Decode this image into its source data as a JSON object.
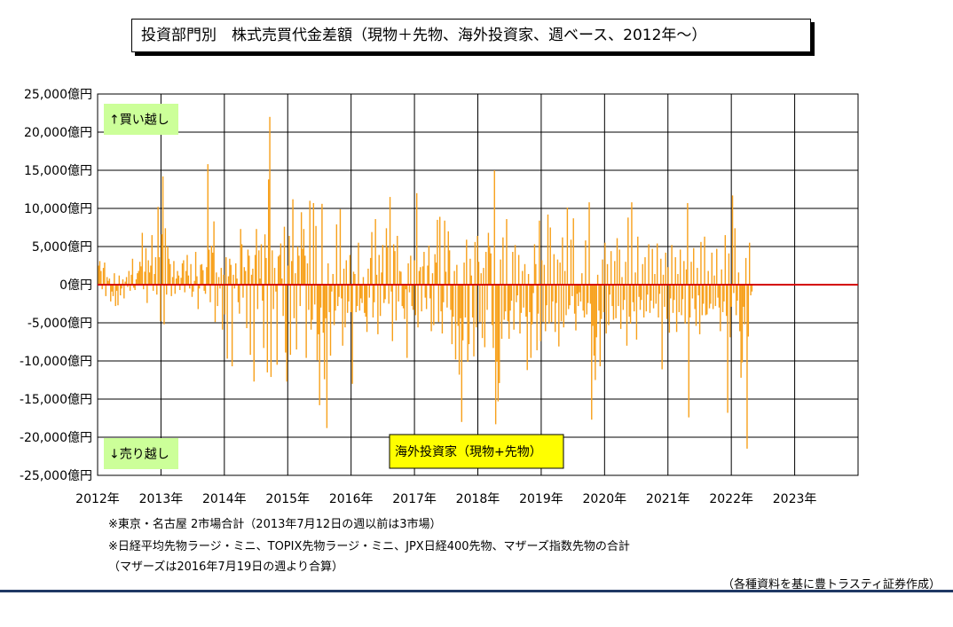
{
  "title": "投資部門別　株式売買代金差額（現物＋先物、海外投資家、週ベース、2012年～）",
  "notes": [
    "※東京・名古屋 2市場合計（2013年7月12日の週以前は3市場）",
    "※日経平均先物ラージ・ミニ、TOPIX先物ラージ・ミニ、JPX日経400先物、マザーズ指数先物の合計",
    "（マザーズは2016年7月19日の週より合算）"
  ],
  "source": "（各種資料を基に豊トラスティ証券作成）",
  "colors": {
    "bars": "#f7a01a",
    "zero_line": "#d40000",
    "grid": "#000000",
    "buy_sell_box": "#ccff99",
    "legend_box": "#ffff00"
  },
  "chart_data": {
    "type": "bar",
    "title": "投資部門別　株式売買代金差額（現物＋先物、海外投資家、週ベース、2012年～）",
    "unit": "億円",
    "ylim": [
      -25000,
      25000
    ],
    "y_ticks": [
      "25,000億円",
      "20,000億円",
      "15,000億円",
      "10,000億円",
      "5,000億円",
      "0億円",
      "-5,000億円",
      "-10,000億円",
      "-15,000億円",
      "-20,000億円",
      "-25,000億円"
    ],
    "x_tick_labels": [
      "2012年",
      "2013年",
      "2014年",
      "2015年",
      "2016年",
      "2017年",
      "2018年",
      "2019年",
      "2020年",
      "2021年",
      "2022年",
      "2023年"
    ],
    "x_range_years": [
      2012,
      2024
    ],
    "annotation_buy": "↑買い越し",
    "annotation_sell": "↓売り越し",
    "series": [
      {
        "name": "海外投資家（現物+先物）",
        "start": "2012-01-06",
        "interval_days": 7,
        "values": [
          2500,
          3100,
          1800,
          -600,
          2200,
          2900,
          -1500,
          1000,
          500,
          800,
          -2200,
          -900,
          -1500,
          1500,
          -2800,
          -800,
          -2700,
          1200,
          -1400,
          -500,
          700,
          -1800,
          400,
          1000,
          -300,
          1800,
          -800,
          1300,
          3400,
          -400,
          -700,
          700,
          1500,
          1800,
          3000,
          2400,
          6800,
          -600,
          1700,
          4800,
          -2400,
          3200,
          1600,
          2500,
          6500,
          -800,
          1400,
          3600,
          -1300,
          10200,
          3600,
          -4800,
          6600,
          14200,
          -5200,
          7400,
          -1300,
          5000,
          3400,
          2700,
          -1500,
          1000,
          3100,
          -1200,
          800,
          1800,
          1200,
          -700,
          900,
          2800,
          3200,
          -1000,
          1800,
          3900,
          1200,
          -500,
          2700,
          -1600,
          -900,
          500,
          4300,
          1100,
          -3200,
          -500,
          2600,
          2700,
          1900,
          -800,
          -1200,
          2300,
          15800,
          4600,
          -2300,
          5100,
          4200,
          8300,
          -4900,
          1600,
          -2800,
          1000,
          -500,
          2200,
          -5900,
          1300,
          -3900,
          3600,
          -9700,
          1100,
          3400,
          2600,
          -10700,
          1300,
          -500,
          2800,
          800,
          -2300,
          -3800,
          7300,
          5300,
          -1700,
          2300,
          1800,
          -5700,
          4600,
          3800,
          -9200,
          1300,
          2100,
          -12700,
          3900,
          7300,
          -3200,
          4500,
          800,
          5300,
          -2100,
          -8300,
          6600,
          3500,
          -11500,
          13800,
          22000,
          -12100,
          4500,
          -3200,
          2200,
          -900,
          -10500,
          3700,
          3900,
          5400,
          800,
          -4100,
          7600,
          -8900,
          -12700,
          2500,
          6400,
          -9200,
          3100,
          11200,
          -4400,
          1500,
          -8500,
          5000,
          3800,
          -2800,
          9500,
          4700,
          7300,
          3800,
          -9600,
          2800,
          -3300,
          11000,
          -5900,
          -4600,
          10700,
          -2600,
          7700,
          -9900,
          -6500,
          -15800,
          -3000,
          10600,
          -6300,
          -12400,
          -4400,
          -18800,
          2800,
          -3600,
          -9300,
          -900,
          1400,
          -5300,
          -3400,
          7900,
          -2800,
          -1600,
          9900,
          -1800,
          -8000,
          2100,
          -5600,
          3200,
          -3700,
          -2200,
          3900,
          -3600,
          -13000,
          1700,
          1400,
          -3600,
          -2800,
          5500,
          -3400,
          -1800,
          -2400,
          1000,
          -3700,
          -4200,
          -6200,
          2100,
          -1700,
          3500,
          6900,
          -4300,
          -2300,
          8600,
          1300,
          -6500,
          3900,
          -4100,
          1600,
          5200,
          -2400,
          -1900,
          7400,
          4900,
          -2500,
          11500,
          -900,
          -7400,
          5300,
          4400,
          -4700,
          6400,
          -2200,
          1800,
          1700,
          -2800,
          -3100,
          -4500,
          -600,
          -9600,
          2800,
          -1000,
          3800,
          -2800,
          -3300,
          3200,
          -4000,
          12000,
          -5600,
          1800,
          2300,
          -3500,
          2400,
          4300,
          -1700,
          -3200,
          2500,
          5100,
          -1800,
          -6100,
          1500,
          -5300,
          4000,
          2900,
          8500,
          -4900,
          8900,
          -3500,
          -6400,
          -2300,
          8400,
          1700,
          -3000,
          7000,
          4500,
          -3300,
          -7800,
          -4200,
          1800,
          -9800,
          2600,
          -5400,
          -11800,
          -4400,
          -18000,
          -7300,
          2900,
          -4300,
          5900,
          -10100,
          -7800,
          3400,
          1200,
          -4300,
          -9400,
          5600,
          -5600,
          6400,
          3000,
          -4900,
          1500,
          -7000,
          2200,
          -8200,
          4300,
          -3300,
          6800,
          5000,
          4100,
          -5300,
          -8300,
          15000,
          -18300,
          -10100,
          -15300,
          -12900,
          3300,
          -7100,
          6200,
          -4600,
          -3500,
          8600,
          -4800,
          -7100,
          -3400,
          -2100,
          4300,
          -5900,
          5200,
          -2300,
          -1400,
          3900,
          -6400,
          -3700,
          1800,
          -3000,
          2700,
          -4200,
          -11200,
          1400,
          -3600,
          -9600,
          -5200,
          -1100,
          5300,
          2700,
          -8600,
          -3800,
          8400,
          -7400,
          3200,
          -4900,
          2600,
          -6100,
          -2700,
          9200,
          -5100,
          7500,
          -4900,
          -2200,
          4000,
          -6200,
          -2400,
          3300,
          -8100,
          2900,
          -4800,
          6200,
          -5600,
          1800,
          -4000,
          10100,
          -3200,
          -2700,
          5900,
          -1500,
          8700,
          -3800,
          -6000,
          -1200,
          -2800,
          -1000,
          -2200,
          1500,
          -3400,
          -4300,
          5800,
          -3900,
          -2400,
          10800,
          -2500,
          -17700,
          -5400,
          -9300,
          -12500,
          -6900,
          1300,
          -3400,
          -10700,
          -4500,
          3300,
          -3600,
          5500,
          -6400,
          2700,
          -5300,
          -1300,
          4400,
          -2800,
          -4600,
          3100,
          -4400,
          6100,
          -2800,
          4600,
          -5800,
          1000,
          -3300,
          -2000,
          3000,
          -8000,
          8800,
          -4200,
          -5100,
          10800,
          -2300,
          -3500,
          1600,
          -7200,
          6300,
          -1600,
          -3300,
          -2000,
          2700,
          -4300,
          3600,
          -3500,
          -1300,
          5300,
          -3700,
          -2100,
          4700,
          -3100,
          1400,
          -2500,
          5400,
          -4300,
          -1200,
          3400,
          -11100,
          1300,
          -2900,
          4200,
          -4500,
          2300,
          -6300,
          -1800,
          5200,
          -3700,
          -2000,
          3600,
          -6200,
          1400,
          -3600,
          4600,
          -4000,
          -1900,
          3100,
          -5100,
          2000,
          10700,
          -17400,
          -4300,
          3000,
          -1800,
          4800,
          -3200,
          -5400,
          2200,
          -1400,
          -6500,
          5600,
          -4000,
          -2500,
          6300,
          -4000,
          -3900,
          1800,
          -3100,
          -2500,
          4200,
          -3200,
          1200,
          -2800,
          4700,
          -1700,
          -3000,
          -6100,
          2000,
          -3600,
          -2200,
          6500,
          -4100,
          -16800,
          4100,
          -6900,
          -2900,
          11700,
          -1100,
          7400,
          -4000,
          -2100,
          1600,
          -6100,
          -12200,
          -10200,
          -2900,
          -5200,
          3500,
          -21500,
          -6800,
          5500,
          -1400,
          -900
        ]
      }
    ]
  }
}
